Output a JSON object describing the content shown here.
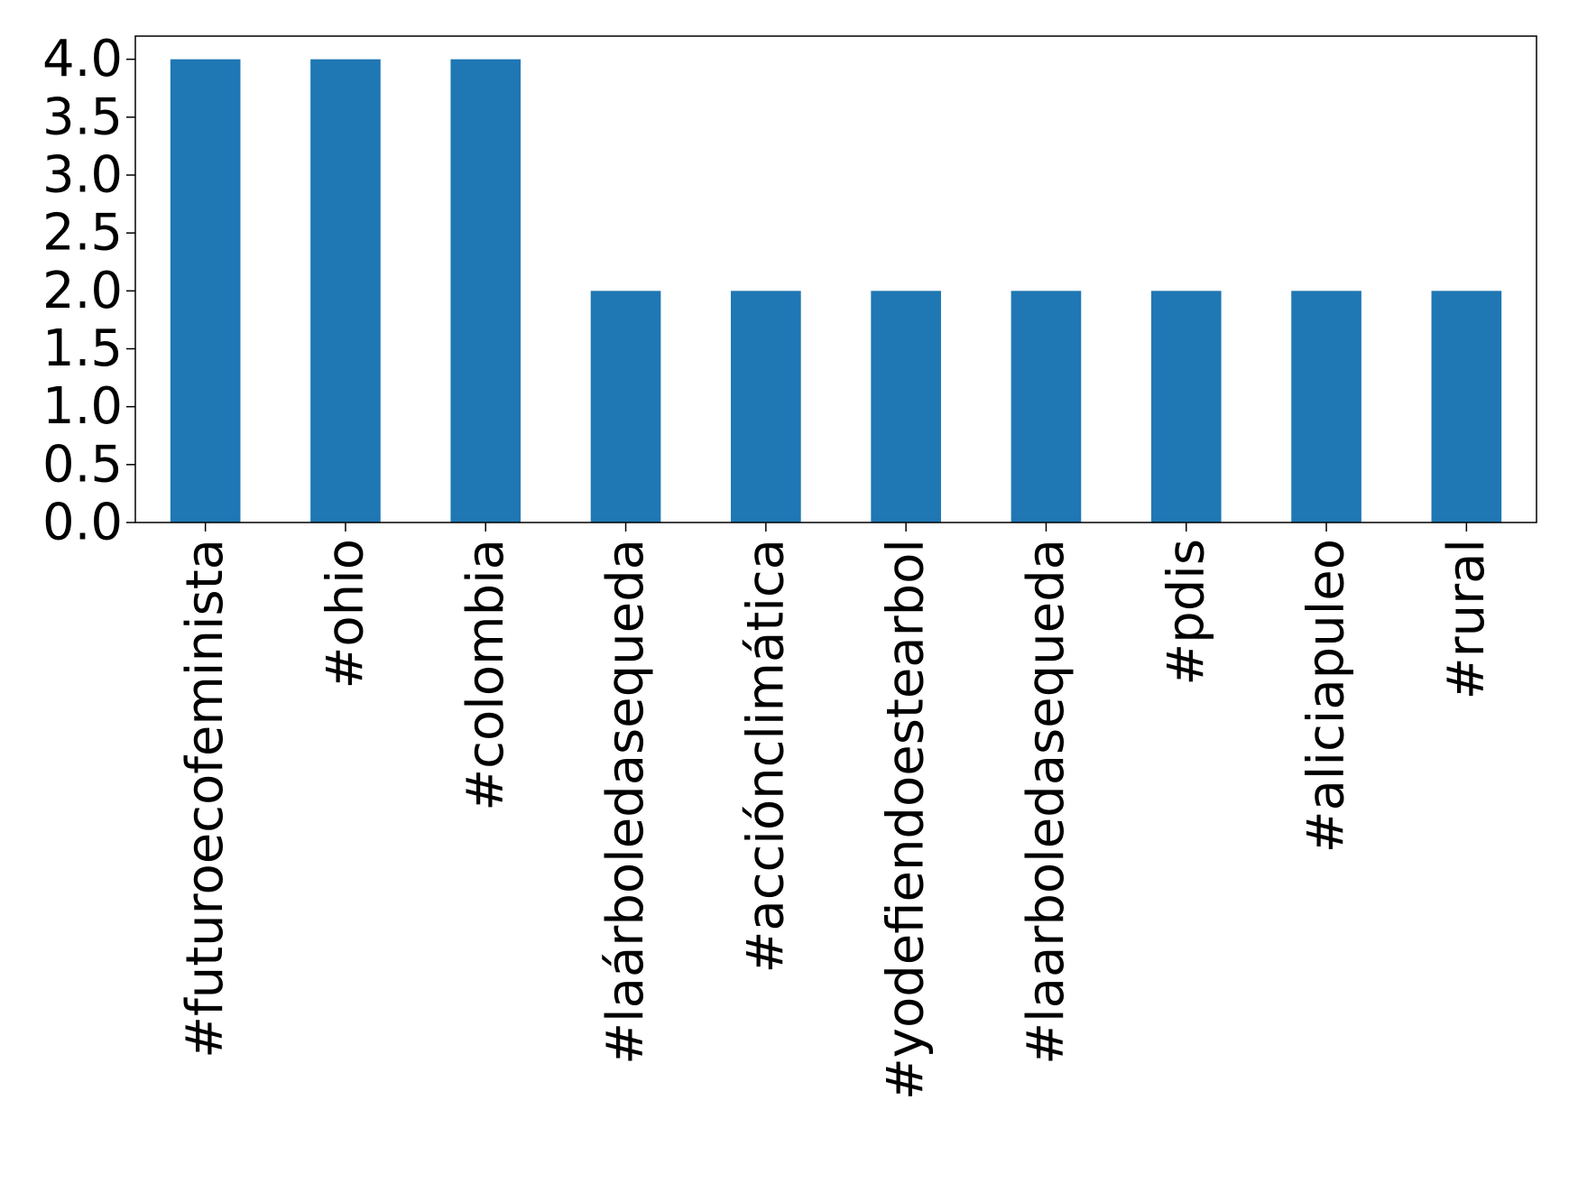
{
  "chart_data": {
    "type": "bar",
    "title": "",
    "xlabel": "",
    "ylabel": "",
    "categories": [
      "#futuroecofeminista",
      "#ohio",
      "#colombia",
      "#laárboledasequeda",
      "#acciónclimática",
      "#yodefiendoestearbol",
      "#laarboledasequeda",
      "#pdis",
      "#aliciapuleo",
      "#rural"
    ],
    "values": [
      4,
      4,
      4,
      2,
      2,
      2,
      2,
      2,
      2,
      2
    ],
    "ylim": [
      0,
      4.2
    ],
    "yticks": [
      "0.0",
      "0.5",
      "1.0",
      "1.5",
      "2.0",
      "2.5",
      "3.0",
      "3.5",
      "4.0"
    ],
    "grid": false,
    "legend": "none",
    "bar_color": "#1f77b4"
  }
}
